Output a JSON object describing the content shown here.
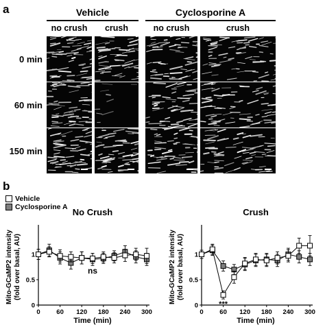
{
  "panel_a": {
    "letter": "a",
    "groups": [
      {
        "title": "Vehicle",
        "columns": [
          "no crush",
          "crush"
        ]
      },
      {
        "title": "Cyclosporine A",
        "columns": [
          "no crush",
          "crush"
        ]
      }
    ],
    "rows": [
      "0 min",
      "60 min",
      "150 min"
    ]
  },
  "panel_b": {
    "letter": "b",
    "legend": [
      {
        "label": "Vehicle",
        "color": "#ffffff"
      },
      {
        "label": "Cyclosporine A",
        "color": "#7f7f7f"
      }
    ]
  },
  "chart_data": [
    {
      "type": "line",
      "title": "No Crush",
      "xlabel": "Time (min)",
      "ylabel": "Mito-GCaMP2 intensity\n(fold over basal, AU)",
      "xlim": [
        0,
        300
      ],
      "ylim": [
        0,
        1.5
      ],
      "xticks": [
        0,
        60,
        120,
        180,
        240,
        300
      ],
      "yticks": [
        0,
        0.5,
        1
      ],
      "annotation": "ns",
      "series": [
        {
          "name": "Vehicle",
          "x": [
            0,
            30,
            60,
            90,
            120,
            150,
            180,
            210,
            240,
            270,
            300
          ],
          "y": [
            1.0,
            1.05,
            0.97,
            0.95,
            0.93,
            0.92,
            0.95,
            0.93,
            0.98,
            1.0,
            0.97
          ],
          "err": [
            0.1,
            0.1,
            0.12,
            0.1,
            0.12,
            0.1,
            0.1,
            0.1,
            0.12,
            0.12,
            0.15
          ]
        },
        {
          "name": "Cyclosporine A",
          "x": [
            0,
            30,
            60,
            90,
            120,
            150,
            180,
            210,
            240,
            270,
            300
          ],
          "y": [
            1.0,
            1.08,
            0.93,
            0.83,
            0.93,
            0.9,
            0.92,
            0.97,
            1.05,
            0.95,
            0.9
          ],
          "err": [
            0.1,
            0.12,
            0.12,
            0.12,
            0.12,
            0.12,
            0.1,
            0.1,
            0.12,
            0.12,
            0.12
          ]
        }
      ]
    },
    {
      "type": "line",
      "title": "Crush",
      "xlabel": "Time (min)",
      "ylabel": "Mito-GCaMP2 intensity\n(fold over basal, AU)",
      "xlim": [
        0,
        300
      ],
      "ylim": [
        0,
        1.5
      ],
      "xticks": [
        0,
        60,
        120,
        180,
        240,
        300
      ],
      "yticks": [
        0,
        0.5,
        1
      ],
      "annotation": "***",
      "series": [
        {
          "name": "Vehicle",
          "x": [
            0,
            30,
            60,
            90,
            120,
            150,
            180,
            210,
            240,
            270,
            300
          ],
          "y": [
            1.0,
            1.1,
            0.2,
            0.55,
            0.82,
            0.9,
            0.88,
            0.93,
            0.97,
            1.17,
            1.17
          ],
          "err": [
            0.08,
            0.1,
            0.08,
            0.12,
            0.12,
            0.12,
            0.12,
            0.12,
            0.12,
            0.15,
            0.2
          ]
        },
        {
          "name": "Cyclosporine A",
          "x": [
            0,
            30,
            60,
            90,
            120,
            150,
            180,
            210,
            240,
            270,
            300
          ],
          "y": [
            1.0,
            1.08,
            0.77,
            0.7,
            0.8,
            0.88,
            0.9,
            0.88,
            1.0,
            0.95,
            0.9
          ],
          "err": [
            0.08,
            0.1,
            0.1,
            0.1,
            0.12,
            0.12,
            0.12,
            0.12,
            0.12,
            0.12,
            0.12
          ]
        }
      ]
    }
  ]
}
